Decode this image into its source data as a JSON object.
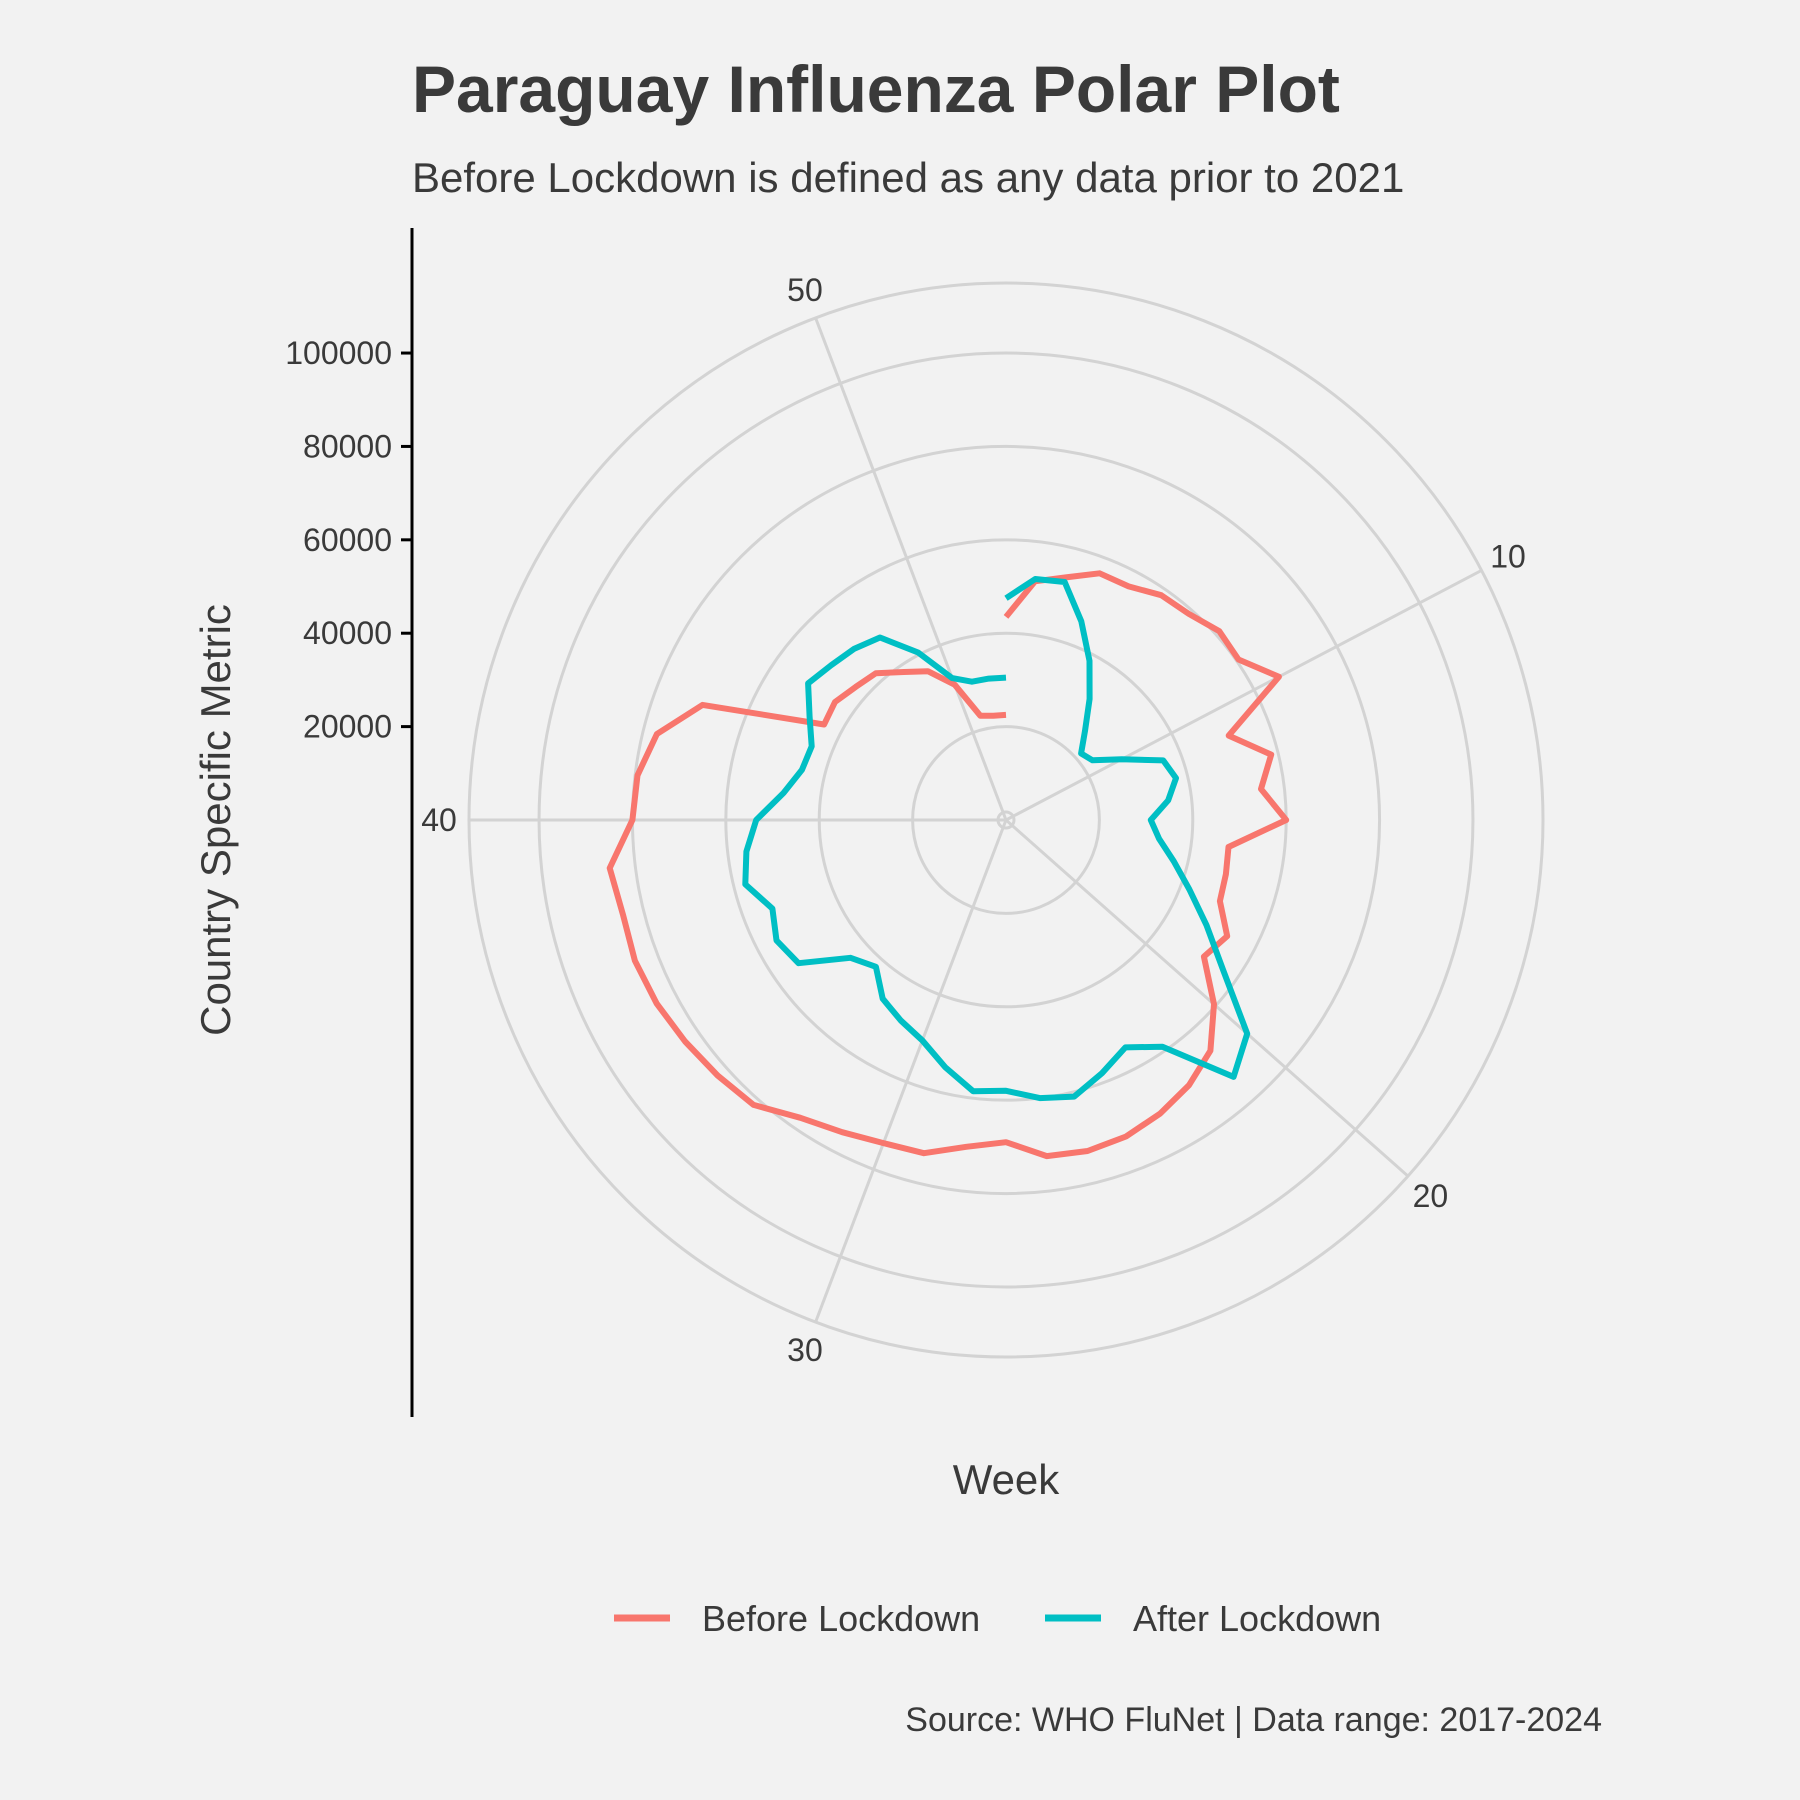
{
  "chart_data": {
    "type": "line",
    "coordinate_system": "polar",
    "title": "Paraguay Influenza Polar Plot",
    "subtitle": "Before Lockdown is defined as any data prior to 2021",
    "xlabel": "Week",
    "ylabel": "Country Specific Metric",
    "caption": "Source: WHO FluNet | Data range: 2017-2024",
    "xlim": [
      1,
      53
    ],
    "ylim": [
      0,
      115000
    ],
    "x_ticks": [
      10,
      20,
      30,
      40,
      50
    ],
    "y_ticks": [
      20000,
      40000,
      60000,
      80000,
      100000
    ],
    "grid": true,
    "legend_position": "bottom",
    "colors": {
      "before": "#f8766d",
      "after": "#00bfc4",
      "grid": "#d3d3d3",
      "background": "#f2f2f2"
    },
    "series": [
      {
        "name": "Before Lockdown",
        "color": "#f8766d",
        "x": [
          1,
          2,
          3,
          4,
          5,
          6,
          7,
          8,
          9,
          10,
          11,
          12,
          13,
          14,
          15,
          16,
          17,
          18,
          19,
          20,
          21,
          22,
          23,
          24,
          25,
          26,
          27,
          28,
          29,
          30,
          31,
          32,
          33,
          34,
          35,
          36,
          37,
          38,
          39,
          40,
          41,
          42,
          43,
          44,
          45,
          46,
          47,
          48,
          49,
          50,
          51,
          52,
          53
        ],
        "values": [
          43500,
          51500,
          53500,
          56500,
          56500,
          58500,
          59000,
          61000,
          60500,
          66000,
          51000,
          58500,
          55000,
          60000,
          48000,
          48500,
          49000,
          53500,
          51500,
          59500,
          66000,
          69000,
          71000,
          72500,
          73000,
          72500,
          69000,
          70500,
          73500,
          74000,
          75500,
          77500,
          81500,
          82500,
          83500,
          84500,
          85000,
          84500,
          85500,
          80000,
          79500,
          77000,
          69500,
          44000,
          44500,
          43000,
          42000,
          38500,
          36000,
          31000,
          23000,
          22500,
          22500
        ]
      },
      {
        "name": "After Lockdown",
        "color": "#00bfc4",
        "x": [
          1,
          2,
          3,
          4,
          5,
          6,
          7,
          8,
          9,
          10,
          11,
          12,
          13,
          14,
          15,
          16,
          17,
          18,
          19,
          20,
          21,
          22,
          23,
          24,
          25,
          26,
          27,
          28,
          29,
          30,
          31,
          32,
          33,
          34,
          35,
          36,
          37,
          38,
          39,
          40,
          41,
          42,
          43,
          44,
          45,
          46,
          47,
          48,
          49,
          50,
          51,
          52,
          53
        ],
        "values": [
          47500,
          52000,
          52500,
          45500,
          38500,
          31500,
          25500,
          21500,
          22500,
          28000,
          36000,
          37500,
          35000,
          31000,
          33000,
          37000,
          42000,
          48500,
          56500,
          69000,
          73500,
          59000,
          55000,
          58000,
          61000,
          60000,
          58000,
          58500,
          54500,
          50500,
          48500,
          46500,
          42000,
          44500,
          54000,
          55500,
          53500,
          57500,
          56000,
          53500,
          48000,
          45000,
          44500,
          47500,
          51500,
          50000,
          49000,
          47500,
          40500,
          32500,
          30500,
          30500,
          30500
        ]
      }
    ]
  }
}
